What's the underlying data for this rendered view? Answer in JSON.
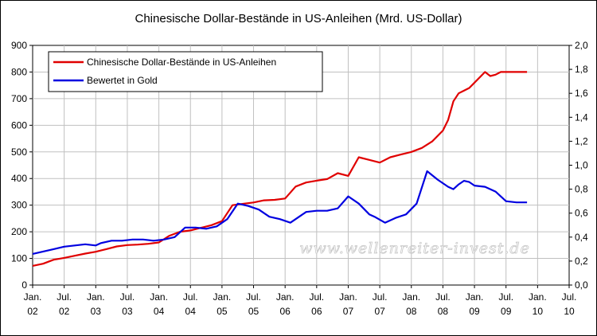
{
  "chart_data": {
    "type": "line",
    "title": "Chinesische Dollar-Bestände in US-Anleihen (Mrd. US-Dollar)",
    "watermark": "www.wellenreiter-invest.de",
    "x_axis": {
      "months": [
        "Jan.",
        "Jul.",
        "Jan.",
        "Jul.",
        "Jan.",
        "Jul.",
        "Jan.",
        "Jul.",
        "Jan.",
        "Jul.",
        "Jan.",
        "Jul.",
        "Jan.",
        "Jul.",
        "Jan.",
        "Jul.",
        "Jan.",
        "Jul.",
        "Jan."
      ],
      "years": [
        "02",
        "02",
        "03",
        "03",
        "04",
        "04",
        "05",
        "05",
        "06",
        "06",
        "07",
        "07",
        "08",
        "08",
        "09",
        "09",
        "10",
        "10",
        "10"
      ],
      "range": [
        "2002-01",
        "2010-07"
      ]
    },
    "y_left": {
      "ticks": [
        "0",
        "100",
        "200",
        "300",
        "400",
        "500",
        "600",
        "700",
        "800",
        "900"
      ],
      "range": [
        0,
        900
      ]
    },
    "y_right": {
      "ticks": [
        "0,0",
        "0,2",
        "0,4",
        "0,6",
        "0,8",
        "1,0",
        "1,2",
        "1,4",
        "1,6",
        "1,8",
        "2,0"
      ],
      "range": [
        0,
        2.0
      ]
    },
    "grid": true,
    "legend_position": "top-left",
    "colors": {
      "series1": "#e00000",
      "series2": "#0000e0"
    },
    "series": [
      {
        "name": "Chinesische Dollar-Bestände in US-Anleihen",
        "axis": "left",
        "x": [
          "2002-01",
          "2002-03",
          "2002-05",
          "2002-07",
          "2002-09",
          "2002-11",
          "2003-01",
          "2003-03",
          "2003-05",
          "2003-07",
          "2003-09",
          "2003-11",
          "2004-01",
          "2004-03",
          "2004-05",
          "2004-07",
          "2004-09",
          "2004-11",
          "2005-01",
          "2005-03",
          "2005-05",
          "2005-07",
          "2005-09",
          "2005-11",
          "2006-01",
          "2006-03",
          "2006-05",
          "2006-07",
          "2006-09",
          "2006-11",
          "2007-01",
          "2007-03",
          "2007-05",
          "2007-07",
          "2007-09",
          "2007-11",
          "2008-01",
          "2008-03",
          "2008-05",
          "2008-07",
          "2008-08",
          "2008-09",
          "2008-10",
          "2008-11",
          "2008-12",
          "2009-01",
          "2009-03",
          "2009-04",
          "2009-05",
          "2009-06",
          "2009-07",
          "2009-09",
          "2009-11"
        ],
        "y": [
          72,
          80,
          95,
          102,
          110,
          118,
          125,
          135,
          145,
          150,
          152,
          155,
          160,
          185,
          200,
          205,
          215,
          225,
          240,
          300,
          305,
          310,
          318,
          320,
          325,
          370,
          385,
          392,
          398,
          420,
          410,
          480,
          470,
          460,
          480,
          490,
          500,
          515,
          540,
          580,
          620,
          690,
          720,
          730,
          740,
          760,
          800,
          785,
          790,
          800,
          800,
          800,
          800
        ]
      },
      {
        "name": "Bewertet in Gold",
        "axis": "right",
        "x": [
          "2002-01",
          "2002-03",
          "2002-05",
          "2002-07",
          "2002-09",
          "2002-11",
          "2003-01",
          "2003-02",
          "2003-04",
          "2003-06",
          "2003-08",
          "2003-10",
          "2003-12",
          "2004-02",
          "2004-04",
          "2004-06",
          "2004-08",
          "2004-10",
          "2004-12",
          "2005-02",
          "2005-04",
          "2005-06",
          "2005-08",
          "2005-10",
          "2005-12",
          "2006-02",
          "2006-04",
          "2006-05",
          "2006-07",
          "2006-09",
          "2006-11",
          "2007-01",
          "2007-03",
          "2007-05",
          "2007-06",
          "2007-08",
          "2007-10",
          "2007-12",
          "2008-02",
          "2008-04",
          "2008-06",
          "2008-08",
          "2008-09",
          "2008-10",
          "2008-11",
          "2008-12",
          "2009-01",
          "2009-03",
          "2009-05",
          "2009-07",
          "2009-09",
          "2009-11"
        ],
        "y": [
          0.26,
          0.28,
          0.3,
          0.32,
          0.33,
          0.34,
          0.33,
          0.35,
          0.37,
          0.37,
          0.38,
          0.38,
          0.37,
          0.38,
          0.4,
          0.48,
          0.48,
          0.47,
          0.49,
          0.55,
          0.68,
          0.66,
          0.63,
          0.57,
          0.55,
          0.52,
          0.58,
          0.61,
          0.62,
          0.62,
          0.64,
          0.74,
          0.68,
          0.59,
          0.57,
          0.52,
          0.56,
          0.59,
          0.68,
          0.95,
          0.88,
          0.82,
          0.8,
          0.84,
          0.87,
          0.86,
          0.83,
          0.82,
          0.78,
          0.7,
          0.69,
          0.69
        ]
      }
    ]
  }
}
